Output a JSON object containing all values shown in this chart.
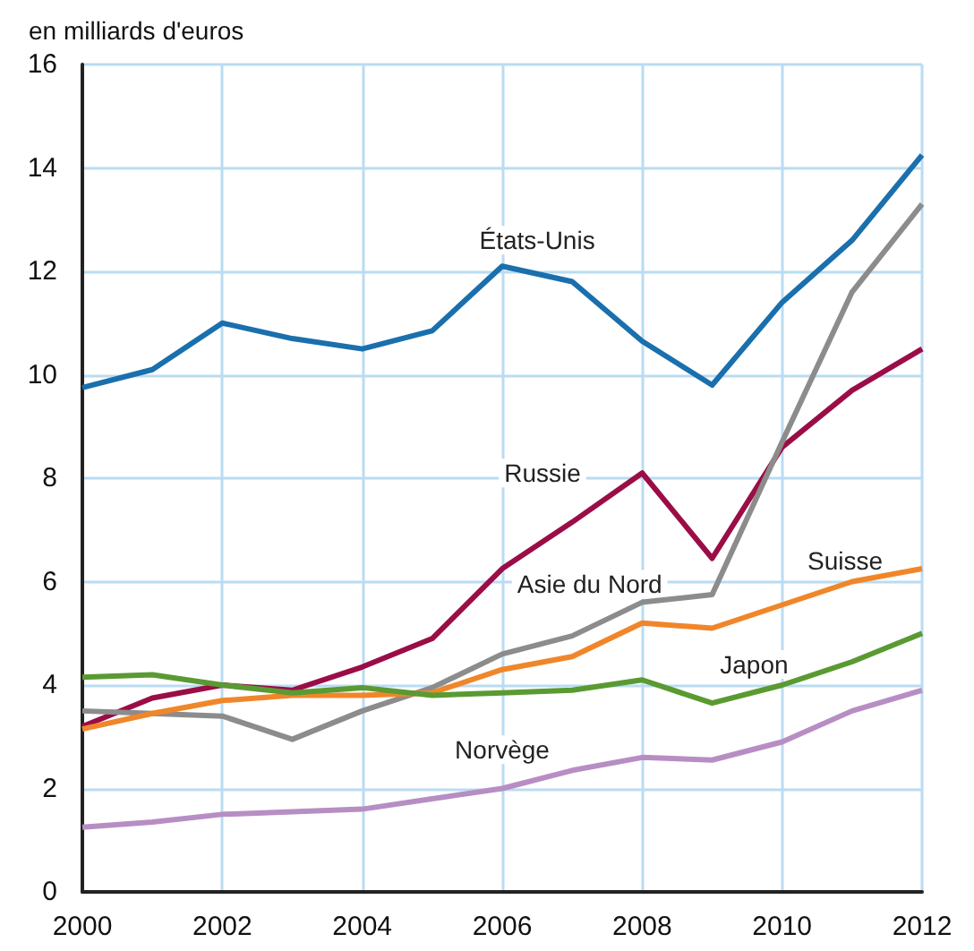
{
  "chart_data": {
    "type": "line",
    "ylabel": "en milliards d'euros",
    "x": [
      2000,
      2001,
      2002,
      2003,
      2004,
      2005,
      2006,
      2007,
      2008,
      2009,
      2010,
      2011,
      2012
    ],
    "xlim": [
      2000,
      2012
    ],
    "xticks": [
      2000,
      2002,
      2004,
      2006,
      2008,
      2010,
      2012
    ],
    "ylim": [
      0,
      16
    ],
    "yticks": [
      0,
      2,
      4,
      6,
      8,
      10,
      12,
      14,
      16
    ],
    "grid": true,
    "legend": false,
    "marker": "none",
    "line_style": "solid",
    "series": [
      {
        "name": "États-Unis",
        "color": "#1a6fad",
        "values": [
          9.75,
          10.1,
          11.0,
          10.7,
          10.5,
          10.85,
          12.1,
          11.8,
          10.65,
          9.8,
          11.4,
          12.6,
          14.25
        ]
      },
      {
        "name": "Russie",
        "color": "#9b0d46",
        "values": [
          3.2,
          3.75,
          4.0,
          3.9,
          4.35,
          4.9,
          6.25,
          7.15,
          8.1,
          6.45,
          8.6,
          9.7,
          10.5
        ]
      },
      {
        "name": "Asie du Nord",
        "color": "#8c8c8c",
        "values": [
          3.5,
          3.45,
          3.4,
          2.95,
          3.5,
          3.95,
          4.6,
          4.95,
          5.6,
          5.75,
          8.7,
          11.6,
          13.3
        ]
      },
      {
        "name": "Suisse",
        "color": "#f0862a",
        "values": [
          3.15,
          3.45,
          3.7,
          3.8,
          3.8,
          3.85,
          4.3,
          4.55,
          5.2,
          5.1,
          5.55,
          6.0,
          6.25
        ]
      },
      {
        "name": "Japon",
        "color": "#5a9a32",
        "values": [
          4.15,
          4.2,
          4.0,
          3.85,
          3.95,
          3.8,
          3.85,
          3.9,
          4.1,
          3.65,
          4.0,
          4.45,
          5.0
        ]
      },
      {
        "name": "Norvège",
        "color": "#b78ec4",
        "values": [
          1.25,
          1.35,
          1.5,
          1.55,
          1.6,
          1.8,
          2.0,
          2.35,
          2.6,
          2.55,
          2.9,
          3.5,
          3.9
        ]
      }
    ]
  }
}
